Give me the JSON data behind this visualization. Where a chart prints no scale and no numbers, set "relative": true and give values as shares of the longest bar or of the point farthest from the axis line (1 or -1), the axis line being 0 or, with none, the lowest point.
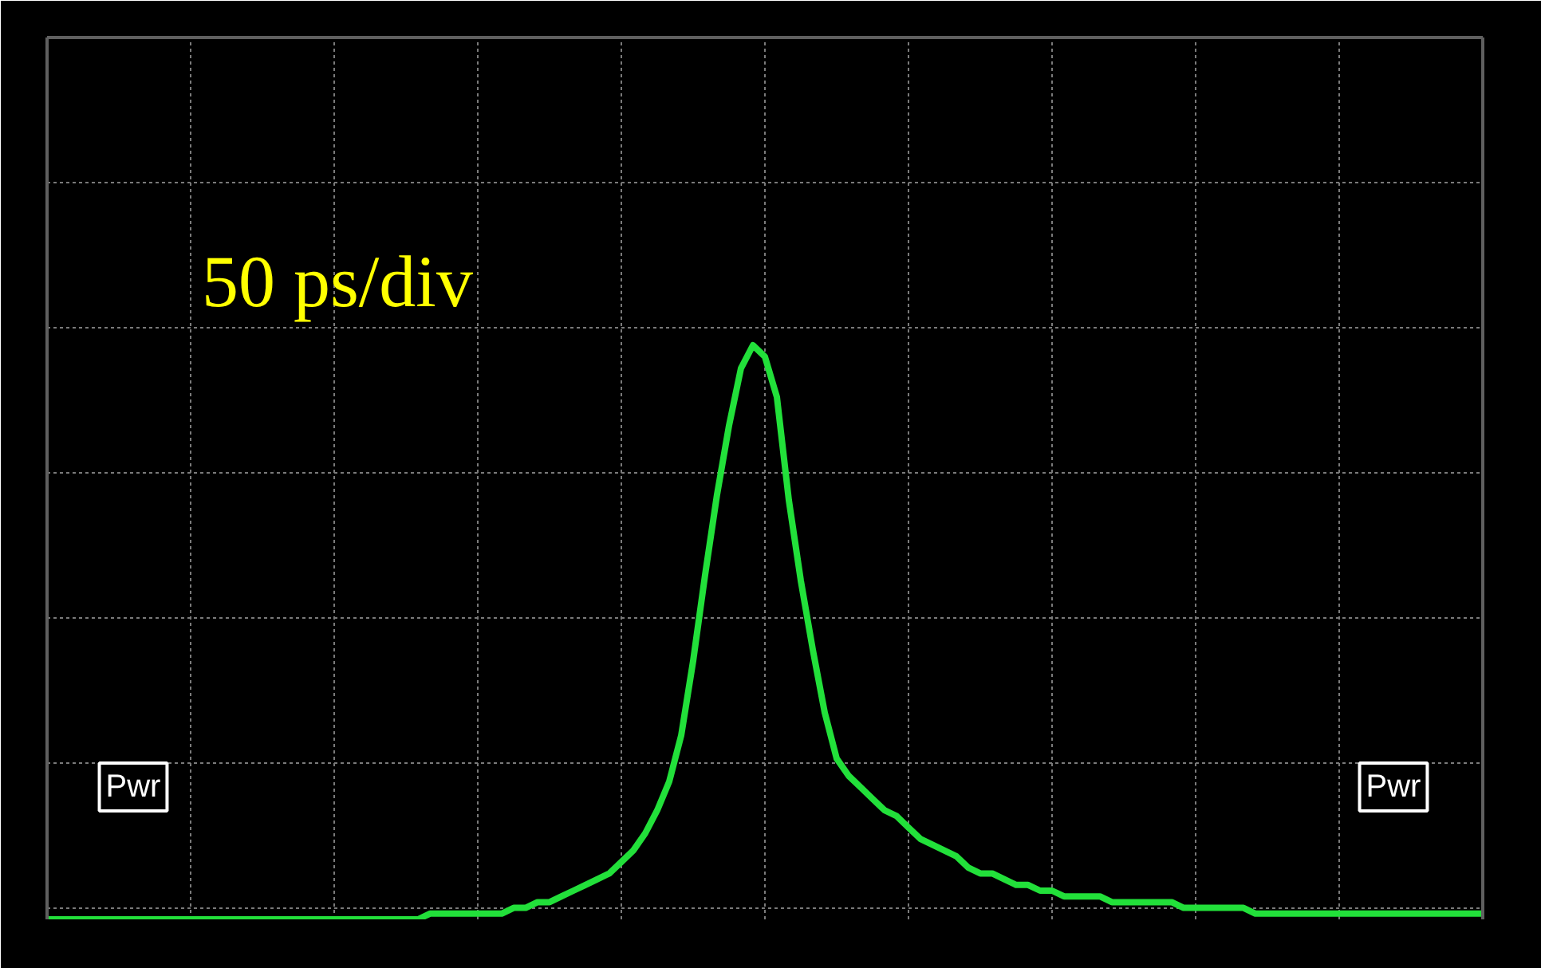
{
  "chart_data": {
    "type": "line",
    "relative": true,
    "grid": true,
    "marker": "none",
    "line_style": "solid",
    "annotations": [
      "50 ps/div",
      "Pwr",
      "Pwr"
    ],
    "categories": [
      null,
      null,
      null,
      null,
      null,
      null,
      null,
      null,
      null,
      null,
      null,
      null,
      null,
      null,
      null,
      null,
      null,
      null,
      null,
      null,
      null,
      null,
      null,
      null,
      null,
      null,
      null,
      null,
      null,
      null,
      null,
      null,
      null,
      null,
      null,
      null,
      null,
      null,
      null,
      null,
      null,
      null,
      null,
      null,
      null,
      null,
      null,
      null,
      null,
      null,
      null,
      null,
      null,
      null,
      null,
      null,
      null,
      null,
      null,
      null,
      null,
      null,
      null,
      null,
      null,
      null,
      null,
      null,
      null,
      null,
      null,
      null,
      null,
      null,
      null,
      null,
      null,
      null,
      null,
      null,
      null,
      null,
      null,
      null,
      null,
      null,
      null,
      null,
      null,
      null,
      null,
      null,
      null,
      null,
      null,
      null,
      null,
      null,
      null,
      null,
      null,
      null,
      null,
      null,
      null,
      null,
      null,
      null,
      null,
      null,
      null,
      null,
      null,
      null,
      null,
      null,
      null,
      null,
      null,
      null,
      null
    ],
    "series": [
      {
        "color": "#22e03a",
        "values": [
          0,
          0,
          0,
          0,
          0,
          0,
          0,
          0,
          0,
          0,
          0,
          0,
          0,
          0,
          0,
          0,
          0,
          0,
          0,
          0,
          0,
          0,
          0,
          0,
          0,
          0,
          0,
          0,
          0,
          0,
          0,
          0,
          0.01,
          0.01,
          0.01,
          0.01,
          0.01,
          0.01,
          0.01,
          0.02,
          0.02,
          0.03,
          0.03,
          0.04,
          0.05,
          0.06,
          0.07,
          0.08,
          0.1,
          0.12,
          0.15,
          0.19,
          0.24,
          0.32,
          0.45,
          0.6,
          0.74,
          0.86,
          0.96,
          1.0,
          0.98,
          0.91,
          0.73,
          0.59,
          0.47,
          0.36,
          0.28,
          0.25,
          0.23,
          0.21,
          0.19,
          0.18,
          0.16,
          0.14,
          0.13,
          0.12,
          0.11,
          0.09,
          0.08,
          0.08,
          0.07,
          0.06,
          0.06,
          0.05,
          0.05,
          0.04,
          0.04,
          0.04,
          0.04,
          0.03,
          0.03,
          0.03,
          0.03,
          0.03,
          0.03,
          0.02,
          0.02,
          0.02,
          0.02,
          0.02,
          0.02,
          0.01,
          0.01,
          0.01,
          0.01,
          0.01,
          0.01,
          0.01,
          0.01,
          0.01,
          0.01,
          0.01,
          0.01,
          0.01,
          0.01,
          0.01,
          0.01,
          0.01,
          0.01,
          0.01,
          0.01
        ]
      }
    ]
  }
}
